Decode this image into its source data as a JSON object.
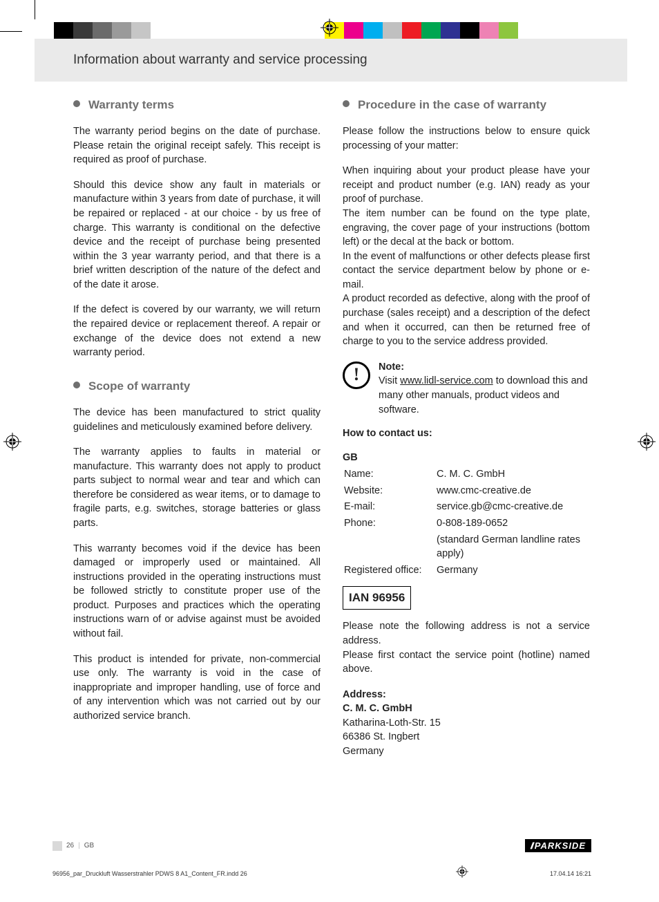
{
  "colorbar": {
    "left": [
      "#000000",
      "#3a3a3a",
      "#6b6b6b",
      "#9a9a9a",
      "#c6c6c6",
      "#ffffff",
      "#ffffff",
      "#ffffff",
      "#ffffff",
      "#ffffff"
    ],
    "right": [
      "#fff200",
      "#ec008c",
      "#00aeef",
      "#c0c0c0",
      "#ed1c24",
      "#00a651",
      "#2e3192",
      "#000000",
      "#ee82b4",
      "#8dc63f"
    ],
    "swatch_w": 28
  },
  "header": "Information about warranty and service processing",
  "left_col": {
    "s1_title": "Warranty terms",
    "s1_p1": "The warranty period begins on the date of purchase. Please retain the original receipt safely. This receipt is required as proof of purchase.",
    "s1_p2": "Should this device show any fault in materials or manufacture within 3 years from date of purchase, it will be repaired or replaced - at our choice - by us free of charge. This warranty is conditional on the defective device and the receipt of purchase being presented within the 3 year warranty period, and that there is a brief written description of the nature of the defect and of the date it arose.",
    "s1_p3": "If the defect is covered by our warranty, we will return the repaired device or replacement thereof. A repair or exchange of the device does not extend a new warranty period.",
    "s2_title": "Scope of warranty",
    "s2_p1": "The device has been manufactured to strict quality guidelines and meticulously examined before delivery.",
    "s2_p2": "The warranty applies to faults in material or manufacture. This warranty does not apply to product parts subject to normal wear and tear and which can therefore be considered as wear items, or to damage to fragile parts, e.g. switches, storage batteries or glass parts.",
    "s2_p3": "This warranty becomes void if the device has been damaged or improperly used or maintained. All instructions provided in the operating instructions must be followed strictly to constitute proper use of the product. Purposes and practices which the operating instructions warn of or advise against must be avoided without fail.",
    "s2_p4": "This product is intended for private, non-commercial use only. The warranty is void in the case of inappropriate and improper handling, use of force and of any intervention which was not carried out by our authorized service branch."
  },
  "right_col": {
    "s3_title": "Procedure in the case of warranty",
    "s3_p1": "Please follow the instructions below to ensure quick processing of your matter:",
    "s3_p2": "When inquiring about your product please have your receipt and product number (e.g. IAN) ready as your proof of purchase.",
    "s3_p3": "The item number can be found on the type plate, engraving, the cover page of your instructions (bottom left) or the decal at the back or bottom.",
    "s3_p4": "In the event of malfunctions or other defects please first contact the service department below by phone or e-mail.",
    "s3_p5": "A product recorded as defective, along with the proof of purchase (sales receipt) and a description of the defect and when it occurred, can then be returned free of charge to you to the service address provided.",
    "note_label": "Note:",
    "note_pre": "Visit ",
    "note_link": "www.lidl-service.com",
    "note_post": " to download this and many other manuals, product videos and software.",
    "contact_h": "How to contact us:",
    "gb": "GB",
    "c_name_l": "Name:",
    "c_name_v": "C. M. C. GmbH",
    "c_web_l": "Website:",
    "c_web_v": "www.cmc-creative.de",
    "c_mail_l": "E-mail:",
    "c_mail_v": "service.gb@cmc-creative.de",
    "c_phone_l": "Phone:",
    "c_phone_v": "0-808-189-0652",
    "c_phone_v2": "(standard German landline rates apply)",
    "c_off_l": "Registered office:",
    "c_off_v": "Germany",
    "ian": "IAN 96956",
    "addr_note1": "Please note the following address is not a service address.",
    "addr_note2": "Please first contact the service point (hotline) named above.",
    "addr_h": "Address:",
    "addr_l1": "C. M. C. GmbH",
    "addr_l2": "Katharina-Loth-Str. 15",
    "addr_l3": "66386 St. Ingbert",
    "addr_l4": "Germany"
  },
  "footer": {
    "page_no": "26",
    "country": "GB",
    "brand": "PARKSIDE",
    "file": "96956_par_Druckluft Wasserstrahler PDWS 8 A1_Content_FR.indd   26",
    "timestamp": "17.04.14   16:21"
  }
}
